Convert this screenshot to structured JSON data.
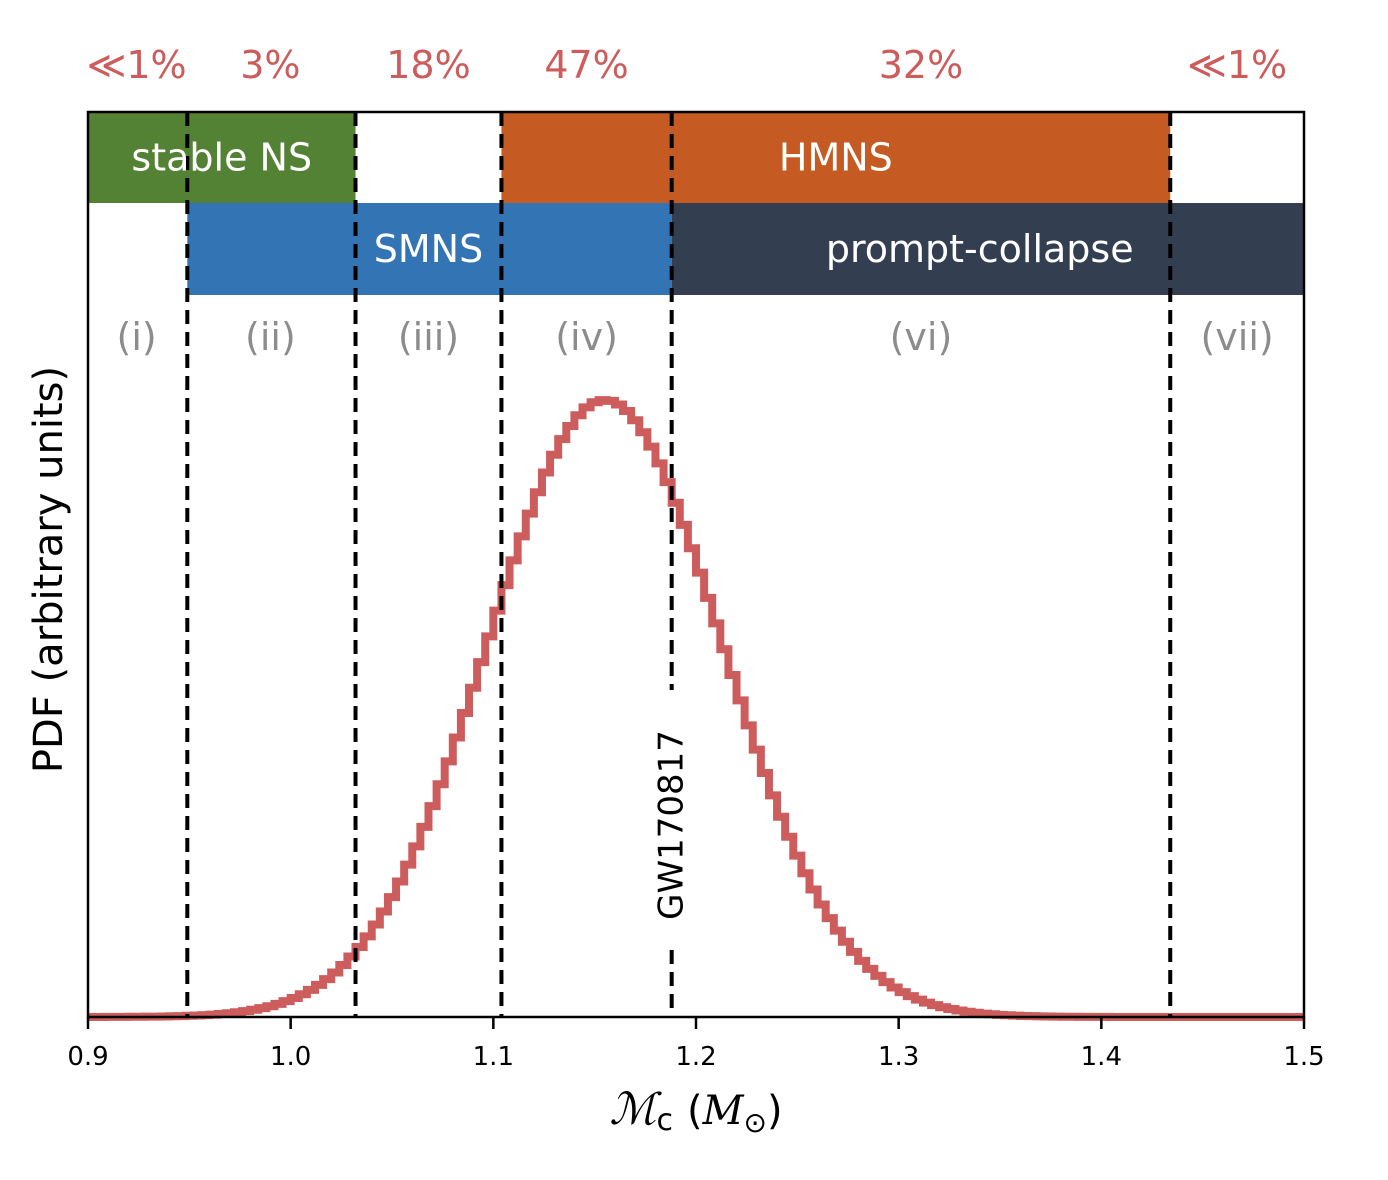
{
  "chart_data": {
    "type": "line",
    "xlabel_main": "ℳ",
    "xlabel_sub": "c",
    "xlabel_unit_open": "(",
    "xlabel_unit_M": "M",
    "xlabel_unit_sun": "⊙",
    "xlabel_unit_close": ")",
    "ylabel": "PDF  (arbitrary units)",
    "xlim": [
      0.9,
      1.5
    ],
    "ylim": [
      0,
      1
    ],
    "x_ticks": [
      0.9,
      1.0,
      1.1,
      1.2,
      1.3,
      1.4,
      1.5
    ],
    "x_tick_labels": [
      "0.9",
      "1.0",
      "1.1",
      "1.2",
      "1.3",
      "1.4",
      "1.5"
    ],
    "pdf_mean": 1.155,
    "pdf_sigma": 0.058,
    "pdf_bin_width": 0.004,
    "curve_color": "#cd5c5c",
    "boundaries": [
      0.949,
      1.032,
      1.104,
      1.188,
      1.434
    ],
    "boundary_names": [
      "i-ii",
      "ii-iii",
      "iii-iv",
      "iv-vi",
      "vi-vii"
    ],
    "annotation": {
      "text": "GW170817",
      "x": 1.188,
      "y": 0.14
    },
    "percentages": [
      {
        "name": "i",
        "text": "≪1%",
        "x": 0.924
      },
      {
        "name": "ii",
        "text": "3%",
        "x": 0.99
      },
      {
        "name": "iii",
        "text": "18%",
        "x": 1.068
      },
      {
        "name": "iv",
        "text": "47%",
        "x": 1.146
      },
      {
        "name": "vi",
        "text": "32%",
        "x": 1.311
      },
      {
        "name": "vii",
        "text": "≪1%",
        "x": 1.467
      }
    ],
    "percent_color": "#cd5c5c",
    "regions": [
      {
        "name": "i",
        "text": "(i)",
        "x": 0.924
      },
      {
        "name": "ii",
        "text": "(ii)",
        "x": 0.99
      },
      {
        "name": "iii",
        "text": "(iii)",
        "x": 1.068
      },
      {
        "name": "iv",
        "text": "(iv)",
        "x": 1.146
      },
      {
        "name": "vi",
        "text": "(vi)",
        "x": 1.311
      },
      {
        "name": "vii",
        "text": "(vii)",
        "x": 1.467
      }
    ],
    "bands": [
      {
        "name": "stable-ns",
        "label": "stable NS",
        "x0": 0.9,
        "x1": 1.032,
        "row": 0,
        "color": "#548235",
        "label_x": 0.966
      },
      {
        "name": "hmns",
        "label": "HMNS",
        "x0": 1.104,
        "x1": 1.434,
        "row": 0,
        "color": "#c55a22",
        "label_x": 1.269
      },
      {
        "name": "smns",
        "label": "SMNS",
        "x0": 0.949,
        "x1": 1.188,
        "row": 1,
        "color": "#3274b4",
        "label_x": 1.068
      },
      {
        "name": "prompt-collapse",
        "label": "prompt-collapse",
        "x0": 1.188,
        "x1": 1.5,
        "row": 1,
        "color": "#333f50",
        "label_x": 1.34
      }
    ]
  }
}
